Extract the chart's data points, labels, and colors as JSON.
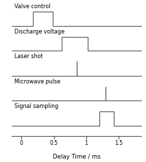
{
  "xlabel": "Delay Time / ms",
  "xlim": [
    -0.15,
    1.85
  ],
  "xticks": [
    0,
    0.5,
    1.0,
    1.5
  ],
  "xticklabels": [
    "0",
    "0.5",
    "1",
    "1.5"
  ],
  "channels": [
    {
      "label": "Valve control",
      "segments_x": [
        -0.15,
        0.18,
        0.18,
        0.48,
        0.48,
        1.85
      ],
      "segments_y": [
        0,
        0,
        1,
        1,
        0,
        0
      ]
    },
    {
      "label": "Discharge voltage",
      "segments_x": [
        -0.15,
        0.62,
        0.62,
        1.02,
        1.02,
        1.85
      ],
      "segments_y": [
        0,
        0,
        1,
        1,
        0,
        0
      ]
    },
    {
      "label": "Laser shot",
      "segments_x": [
        -0.15,
        0.85,
        0.85,
        0.85,
        1.85
      ],
      "segments_y": [
        0,
        0,
        1,
        0,
        0
      ]
    },
    {
      "label": "Microwave pulse",
      "segments_x": [
        -0.15,
        1.3,
        1.3,
        1.3,
        1.85
      ],
      "segments_y": [
        0,
        0,
        1,
        0,
        0
      ]
    },
    {
      "label": "Signal sampling",
      "segments_x": [
        -0.15,
        1.2,
        1.2,
        1.42,
        1.42,
        1.85
      ],
      "segments_y": [
        0,
        0,
        1,
        1,
        0,
        0
      ]
    }
  ],
  "line_color": "#555555",
  "bg_color": "#ffffff",
  "label_fontsize": 5.8,
  "tick_fontsize": 5.5,
  "axis_label_fontsize": 6.2
}
